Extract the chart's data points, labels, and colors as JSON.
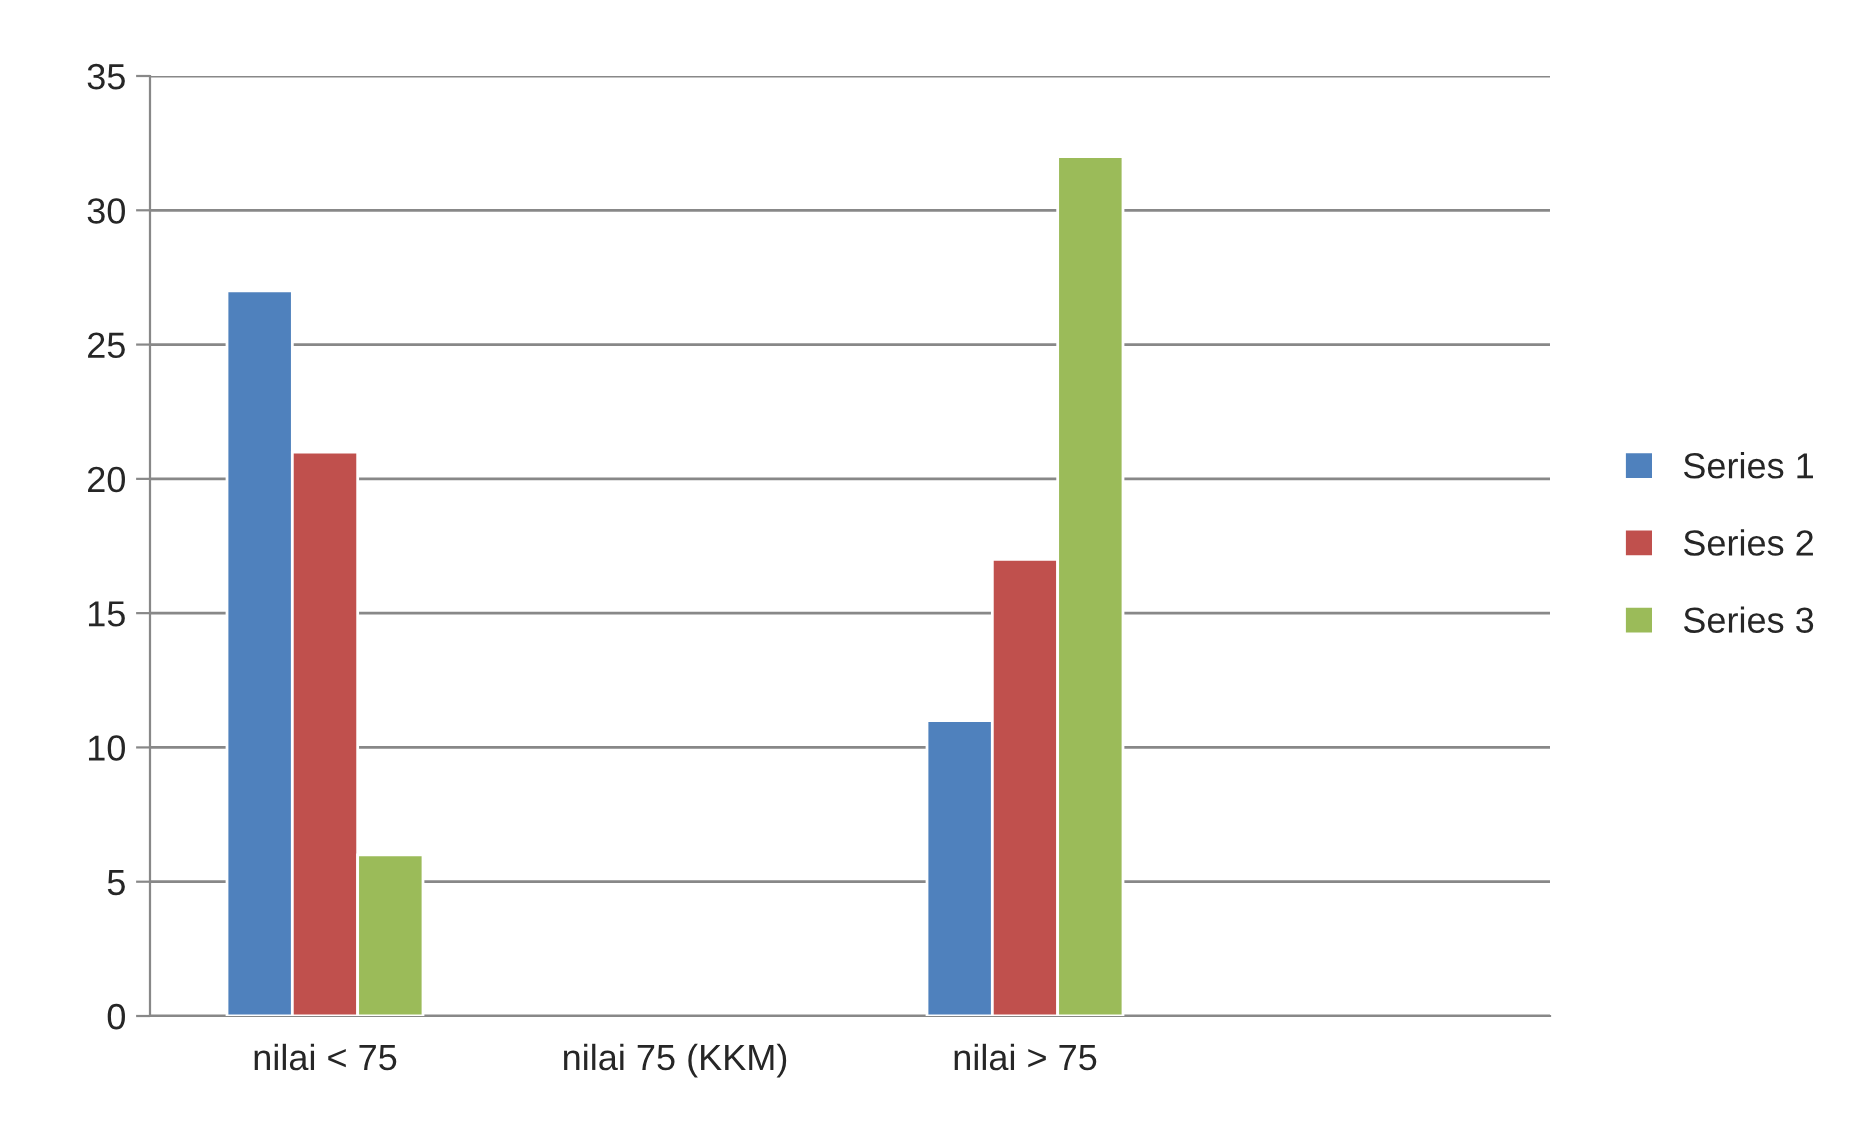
{
  "chart_data": {
    "type": "bar",
    "categories": [
      "nilai < 75",
      "nilai 75 (KKM)",
      "nilai > 75",
      null
    ],
    "series": [
      {
        "name": "Series 1",
        "color": "#4f81bd",
        "values": [
          27,
          null,
          11,
          null
        ]
      },
      {
        "name": "Series 2",
        "color": "#c0504d",
        "values": [
          21,
          null,
          17,
          null
        ]
      },
      {
        "name": "Series 3",
        "color": "#9bbb59",
        "values": [
          6,
          null,
          32,
          null
        ]
      }
    ],
    "ylim": [
      0,
      35
    ],
    "yticks": [
      0,
      5,
      10,
      15,
      20,
      25,
      30,
      35
    ],
    "grid": "y",
    "legend": "right"
  }
}
